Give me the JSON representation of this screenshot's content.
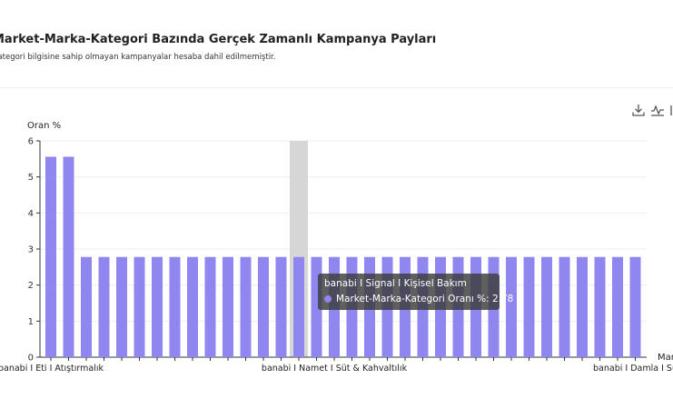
{
  "page": {
    "title": "Market-Marka-Kategori Bazında Gerçek Zamanlı Kampanya Payları",
    "subtitle": "Kategori bilgisine sahip olmayan kampanyalar hesaba dahil edilmemiştir."
  },
  "toolbar": {
    "icons": [
      "download-icon",
      "line-chart-icon",
      "more-icon"
    ]
  },
  "colors": {
    "bar": "#8f86ef",
    "highlight": "#d6d6d6",
    "axis": "#333333",
    "grid": "#eeeeee"
  },
  "tooltip": {
    "title": "banabi I Signal I Kişisel Bakım",
    "series_label": "Market-Marka-Kategori Oranı %: 2.78"
  },
  "chart_data": {
    "type": "bar",
    "ylabel": "Oran %",
    "xlabel": "Market",
    "ylim": [
      0,
      6
    ],
    "yticks": [
      0,
      1,
      2,
      3,
      4,
      5,
      6
    ],
    "highlighted_index": 14,
    "x_tick_labels": [
      {
        "index": 0,
        "label": "banabi I Eti I Atıştırmalık"
      },
      {
        "index": 16,
        "label": "banabi I Namet I Süt & Kahvaltılık"
      },
      {
        "index": 33,
        "label": "banabi I Damla I Su"
      }
    ],
    "series": [
      {
        "name": "Market-Marka-Kategori Oranı %",
        "values": [
          5.56,
          5.56,
          2.78,
          2.78,
          2.78,
          2.78,
          2.78,
          2.78,
          2.78,
          2.78,
          2.78,
          2.78,
          2.78,
          2.78,
          2.78,
          2.78,
          2.78,
          2.78,
          2.78,
          2.78,
          2.78,
          2.78,
          2.78,
          2.78,
          2.78,
          2.78,
          2.78,
          2.78,
          2.78,
          2.78,
          2.78,
          2.78,
          2.78,
          2.78
        ]
      }
    ]
  }
}
